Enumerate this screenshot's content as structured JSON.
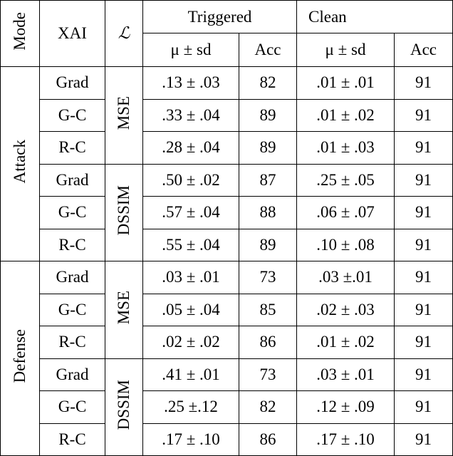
{
  "header": {
    "mode": "Mode",
    "xai": "XAI",
    "loss": "ℒ",
    "triggered": "Triggered",
    "clean": "Clean",
    "subheaders": [
      "μ ± sd",
      "Acc",
      "μ ± sd",
      "Acc"
    ]
  },
  "modes": [
    {
      "name": "Attack",
      "losses": [
        {
          "name": "MSE",
          "rows": [
            {
              "xai": "Grad",
              "trig_mu": ".13 ± .03",
              "trig_acc": 82,
              "clean_mu": ".01 ± .01",
              "clean_acc": 91
            },
            {
              "xai": "G-C",
              "trig_mu": ".33 ± .04",
              "trig_acc": 89,
              "clean_mu": ".01 ± .02",
              "clean_acc": 91
            },
            {
              "xai": "R-C",
              "trig_mu": ".28 ± .04",
              "trig_acc": 89,
              "clean_mu": ".01 ± .03",
              "clean_acc": 91
            }
          ]
        },
        {
          "name": "DSSIM",
          "rows": [
            {
              "xai": "Grad",
              "trig_mu": ".50 ± .02",
              "trig_acc": 87,
              "clean_mu": ".25 ± .05",
              "clean_acc": 91
            },
            {
              "xai": "G-C",
              "trig_mu": ".57 ± .04",
              "trig_acc": 88,
              "clean_mu": ".06 ± .07",
              "clean_acc": 91
            },
            {
              "xai": "R-C",
              "trig_mu": ".55 ± .04",
              "trig_acc": 89,
              "clean_mu": ".10 ± .08",
              "clean_acc": 91
            }
          ]
        }
      ]
    },
    {
      "name": "Defense",
      "losses": [
        {
          "name": "MSE",
          "rows": [
            {
              "xai": "Grad",
              "trig_mu": ".03 ± .01",
              "trig_acc": 73,
              "clean_mu": ".03 ±.01",
              "clean_acc": 91
            },
            {
              "xai": "G-C",
              "trig_mu": ".05 ± .04",
              "trig_acc": 85,
              "clean_mu": ".02 ± .03",
              "clean_acc": 91
            },
            {
              "xai": "R-C",
              "trig_mu": ".02 ± .02",
              "trig_acc": 86,
              "clean_mu": ".01 ± .02",
              "clean_acc": 91
            }
          ]
        },
        {
          "name": "DSSIM",
          "rows": [
            {
              "xai": "Grad",
              "trig_mu": ".41 ± .01",
              "trig_acc": 73,
              "clean_mu": ".03 ± .01",
              "clean_acc": 91
            },
            {
              "xai": "G-C",
              "trig_mu": ".25 ±.12",
              "trig_acc": 82,
              "clean_mu": ".12 ± .09",
              "clean_acc": 91
            },
            {
              "xai": "R-C",
              "trig_mu": ".17 ± .10",
              "trig_acc": 86,
              "clean_mu": ".17 ± .10",
              "clean_acc": 91
            }
          ]
        }
      ]
    }
  ]
}
